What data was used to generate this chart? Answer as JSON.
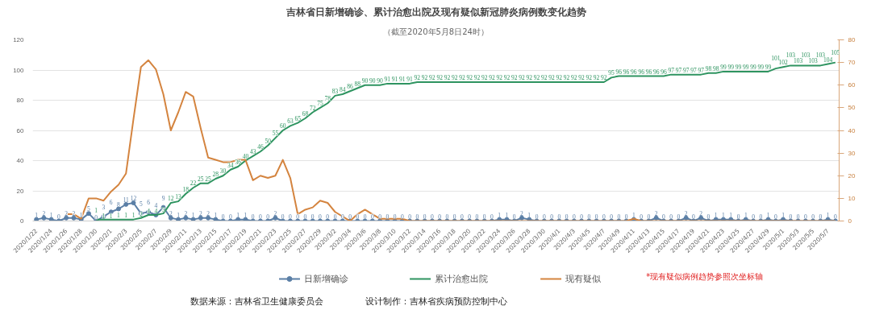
{
  "chart_data": {
    "type": "line",
    "title": "吉林省日新增确诊、累计治愈出院及现有疑似新冠肺炎病例数变化趋势",
    "subtitle": "（截至2020年5月8日24时）",
    "categories": [
      "2020/1/22",
      null,
      "2020/1/24",
      null,
      "2020/1/26",
      null,
      "2020/1/28",
      null,
      "2020/1/30",
      null,
      "2020/2/1",
      null,
      "2020/2/3",
      null,
      "2020/2/5",
      null,
      "2020/2/7",
      null,
      "2020/2/9",
      null,
      "2020/2/11",
      null,
      "2020/2/13",
      null,
      "2020/2/15",
      null,
      "2020/2/17",
      null,
      "2020/2/19",
      null,
      "2020/2/21",
      null,
      "2020/2/23",
      null,
      "2020/2/25",
      null,
      "2020/2/27",
      null,
      "2020/2/29",
      null,
      "2020/3/2",
      null,
      "2020/3/4",
      null,
      "2020/3/6",
      null,
      "2020/3/8",
      null,
      "2020/3/10",
      null,
      "2020/3/12",
      null,
      "2020/3/14",
      null,
      "2020/3/16",
      null,
      "2020/3/18",
      null,
      "2020/3/20",
      null,
      "2020/3/22",
      null,
      "2020/3/24",
      null,
      "2020/3/26",
      null,
      "2020/3/28",
      null,
      "2020/3/30",
      null,
      "2020/4/1",
      null,
      "2020/4/3",
      null,
      "2020/4/5",
      null,
      "2020/4/7",
      null,
      "2020/4/9",
      null,
      "2020/4/11",
      null,
      "2020/4/13",
      null,
      "2020/4/15",
      null,
      "2020/4/17",
      null,
      "2020/4/19",
      null,
      "2020/4/21",
      null,
      "2020/4/23",
      null,
      "2020/4/25",
      null,
      "2020/4/27",
      null,
      "2020/4/29",
      null,
      "2020/5/1",
      null,
      "2020/5/3",
      null,
      "2020/5/5",
      null,
      "2020/5/7",
      null
    ],
    "series": [
      {
        "name": "日新增确诊",
        "color": "#5b7fa6",
        "marker": "circle",
        "data_labels": true,
        "values": [
          1,
          2,
          1,
          0,
          2,
          2,
          1,
          5,
          0,
          3,
          6,
          8,
          11,
          12,
          5,
          6,
          4,
          9,
          2,
          1,
          2,
          1,
          2,
          2,
          1,
          0,
          0,
          1,
          1,
          0,
          0,
          0,
          2,
          0,
          0,
          0,
          0,
          0,
          0,
          0,
          0,
          0,
          0,
          0,
          0,
          0,
          0,
          0,
          0,
          0,
          0,
          0,
          0,
          0,
          0,
          0,
          0,
          0,
          0,
          0,
          0,
          0,
          1,
          1,
          0,
          2,
          1,
          0,
          0,
          0,
          0,
          0,
          0,
          0,
          0,
          0,
          0,
          0,
          0,
          0,
          1,
          0,
          0,
          2,
          0,
          0,
          0,
          2,
          0,
          2,
          0,
          1,
          1,
          1,
          0,
          1,
          0,
          0,
          1,
          0,
          1,
          0,
          0,
          0,
          0,
          0,
          1,
          0
        ]
      },
      {
        "name": "累计治愈出院",
        "color": "#2e9460",
        "marker": "none",
        "data_labels": true,
        "values": [
          null,
          null,
          null,
          null,
          null,
          null,
          null,
          null,
          1,
          1,
          1,
          1,
          1,
          1,
          2,
          4,
          4,
          5,
          12,
          13,
          18,
          22,
          25,
          25,
          28,
          30,
          34,
          36,
          40,
          43,
          46,
          50,
          55,
          60,
          63,
          65,
          68,
          72,
          75,
          78,
          83,
          84,
          86,
          88,
          90,
          90,
          90,
          91,
          91,
          91,
          91,
          92,
          92,
          92,
          92,
          92,
          92,
          92,
          92,
          92,
          92,
          92,
          92,
          92,
          92,
          92,
          92,
          92,
          92,
          92,
          92,
          92,
          92,
          92,
          92,
          92,
          92,
          95,
          96,
          96,
          96,
          96,
          96,
          96,
          96,
          97,
          97,
          97,
          97,
          97,
          98,
          98,
          99,
          99,
          99,
          99,
          99,
          99,
          99,
          101,
          102,
          103,
          103,
          103,
          103,
          103,
          104,
          105
        ]
      },
      {
        "name": "现有疑似",
        "color": "#d4843f",
        "marker": "none",
        "axis": "y2",
        "values": [
          null,
          null,
          null,
          null,
          3,
          3,
          1,
          10,
          10,
          9,
          13,
          16,
          21,
          45,
          68,
          71,
          67,
          56,
          40,
          48,
          57,
          55,
          41,
          28,
          27,
          26,
          26,
          27,
          27,
          18,
          20,
          19,
          20,
          27,
          19,
          3,
          5,
          6,
          9,
          8,
          4,
          2,
          0,
          3,
          5,
          3,
          1,
          1,
          1,
          1,
          0,
          0,
          0,
          0,
          0,
          0,
          0,
          0,
          0,
          0,
          0,
          0,
          0,
          0,
          0,
          0,
          0,
          0,
          0,
          0,
          0,
          0,
          0,
          0,
          0,
          0,
          0,
          0,
          0,
          0,
          1,
          0,
          0,
          0,
          0,
          0,
          0,
          0,
          0,
          0,
          0,
          0,
          0,
          0,
          0,
          0,
          0,
          0,
          0,
          0,
          0,
          0,
          0,
          0,
          0,
          0,
          0,
          0
        ]
      }
    ],
    "ylim": [
      0,
      120
    ],
    "yticks": [
      0,
      20,
      40,
      60,
      80,
      100,
      120
    ],
    "y2lim": [
      0,
      80
    ],
    "y2ticks": [
      0,
      10,
      20,
      30,
      40,
      50,
      60,
      70,
      80
    ],
    "grid": "y",
    "legend": "bottom",
    "annotations": [
      "*现有疑似病例趋势参照次坐标轴",
      "数据来源：吉林省卫生健康委员会",
      "设计制作：吉林省疾病预防控制中心"
    ]
  }
}
